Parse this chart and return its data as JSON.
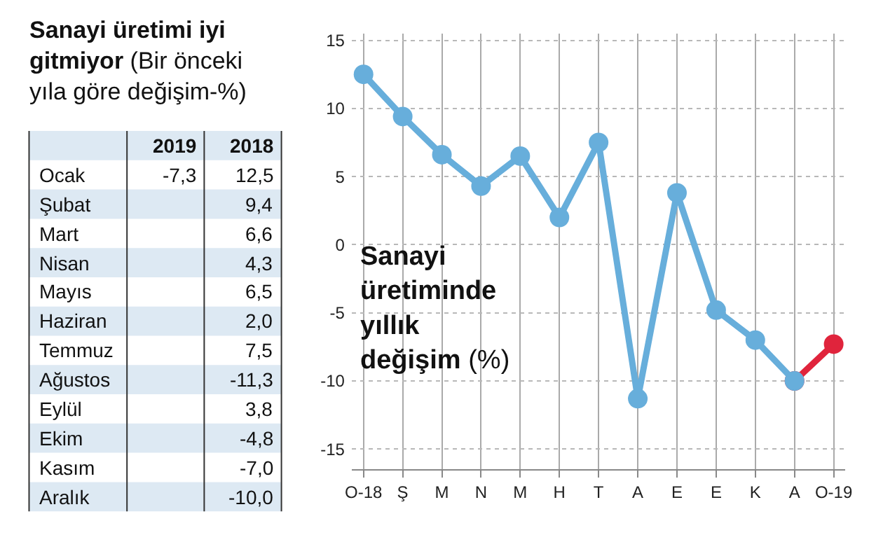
{
  "chart_data": [
    {
      "type": "other",
      "title": "Sanayi üretimi iyi gitmiyor",
      "subtitle": "(Bir önceki yıla göre değişim-%)",
      "categories": [
        "Ocak",
        "Şubat",
        "Mart",
        "Nisan",
        "Mayıs",
        "Haziran",
        "Temmuz",
        "Ağustos",
        "Eylül",
        "Ekim",
        "Kasım",
        "Aralık"
      ],
      "series": [
        {
          "name": "2019",
          "values": [
            -7.3,
            null,
            null,
            null,
            null,
            null,
            null,
            null,
            null,
            null,
            null,
            null
          ],
          "value_labels": [
            "-7,3",
            null,
            null,
            null,
            null,
            null,
            null,
            null,
            null,
            null,
            null,
            null
          ]
        },
        {
          "name": "2018",
          "values": [
            12.5,
            9.4,
            6.6,
            4.3,
            6.5,
            2.0,
            7.5,
            -11.3,
            3.8,
            -4.8,
            -7.0,
            -10.0
          ],
          "value_labels": [
            "12,5",
            "9,4",
            "6,6",
            "4,3",
            "6,5",
            "2,0",
            "7,5",
            "-11,3",
            "3,8",
            "-4,8",
            "-7,0",
            "-10,0"
          ]
        }
      ]
    },
    {
      "type": "line",
      "categories": [
        "O-18",
        "Ş",
        "M",
        "N",
        "M",
        "H",
        "T",
        "A",
        "E",
        "E",
        "K",
        "A",
        "O-19"
      ],
      "series": [
        {
          "color": "#e0243c",
          "values": [
            null,
            null,
            null,
            null,
            null,
            null,
            null,
            null,
            null,
            null,
            null,
            -10.0,
            -7.3
          ]
        },
        {
          "color": "#67aedb",
          "values": [
            12.5,
            9.4,
            6.6,
            4.3,
            6.5,
            2.0,
            7.5,
            -11.3,
            3.8,
            -4.8,
            -7.0,
            -10.0,
            null
          ]
        }
      ],
      "ylim": [
        -16.5,
        15.5
      ],
      "yticks": [
        -15,
        -10,
        -5,
        0,
        5,
        10,
        15
      ],
      "grid": true,
      "marker": "circle",
      "line_style": "solid",
      "annotations": [
        "Sanayi üretiminde yıllık değişim",
        "(%)"
      ]
    }
  ]
}
